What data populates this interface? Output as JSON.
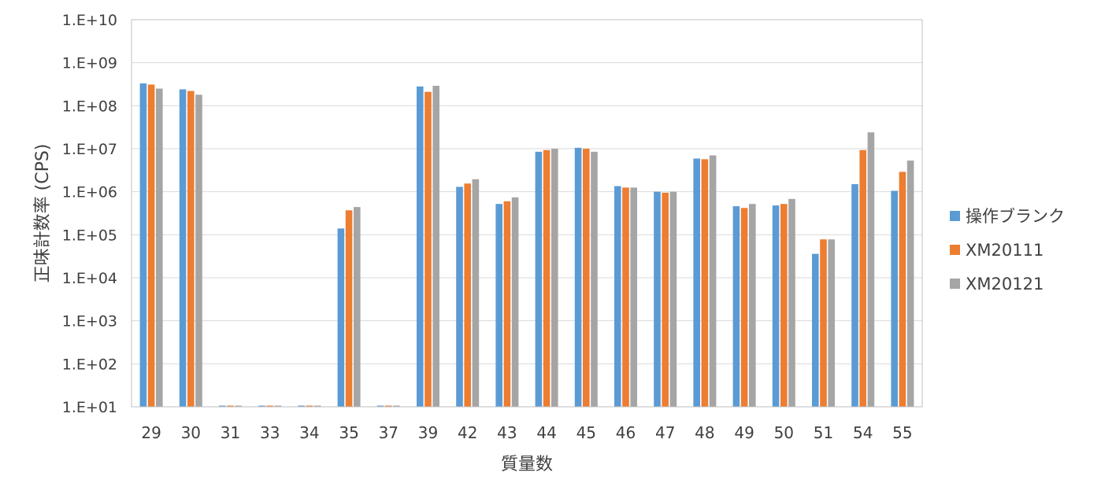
{
  "chart_data": {
    "type": "bar",
    "title": "",
    "xlabel": "質量数",
    "ylabel": "正味計数率 (CPS)",
    "yscale": "log",
    "ylim": [
      10,
      10000000000
    ],
    "ytick_values": [
      10,
      100,
      1000,
      10000,
      100000,
      1000000,
      10000000,
      100000000,
      1000000000,
      10000000000
    ],
    "ytick_labels": [
      "1.E+01",
      "1.E+02",
      "1.E+03",
      "1.E+04",
      "1.E+05",
      "1.E+06",
      "1.E+07",
      "1.E+08",
      "1.E+09",
      "1.E+10"
    ],
    "grid": true,
    "legend_position": "right",
    "categories": [
      "29",
      "30",
      "31",
      "33",
      "34",
      "35",
      "37",
      "39",
      "42",
      "43",
      "44",
      "45",
      "46",
      "47",
      "48",
      "49",
      "50",
      "51",
      "54",
      "55"
    ],
    "series": [
      {
        "name": "操作ブランク",
        "color": "#5B9BD5",
        "values": [
          330000000,
          240000000,
          10,
          10,
          10,
          140000,
          10,
          280000000,
          1300000,
          520000,
          8500000,
          10500000,
          1350000,
          1000000,
          5900000,
          460000,
          480000,
          36000,
          1500000,
          1050000
        ]
      },
      {
        "name": "XM20111",
        "color": "#ED7D31",
        "values": [
          310000000,
          220000000,
          10,
          10,
          10,
          370000,
          10,
          210000000,
          1550000,
          600000,
          9300000,
          10000000,
          1250000,
          950000,
          5700000,
          420000,
          520000,
          78000,
          9300000,
          2900000
        ]
      },
      {
        "name": "XM20121",
        "color": "#A5A5A5",
        "values": [
          250000000,
          180000000,
          10,
          10,
          10,
          440000,
          10,
          290000000,
          1950000,
          740000,
          10000000,
          8500000,
          1250000,
          1000000,
          7000000,
          520000,
          680000,
          78000,
          24000000,
          5300000
        ]
      }
    ]
  }
}
